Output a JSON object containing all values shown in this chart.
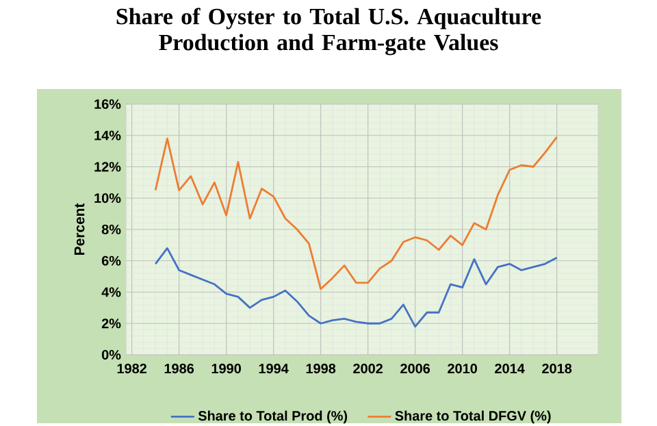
{
  "chart_data": {
    "type": "line",
    "title": "Share of Oyster to Total U.S. Aquaculture Production and Farm-gate Values",
    "ylabel": "Percent",
    "x": [
      1984,
      1985,
      1986,
      1987,
      1988,
      1989,
      1990,
      1991,
      1992,
      1993,
      1994,
      1995,
      1996,
      1997,
      1998,
      1999,
      2000,
      2001,
      2002,
      2003,
      2004,
      2005,
      2006,
      2007,
      2008,
      2009,
      2010,
      2011,
      2012,
      2013,
      2014,
      2015,
      2016,
      2017,
      2018
    ],
    "series": [
      {
        "name": "Share to Total Prod (%)",
        "color": "#4472c4",
        "values": [
          5.8,
          6.8,
          5.4,
          5.1,
          4.8,
          4.5,
          3.9,
          3.7,
          3.0,
          3.5,
          3.7,
          4.1,
          3.4,
          2.5,
          2.0,
          2.2,
          2.3,
          2.1,
          2.0,
          2.0,
          2.3,
          3.2,
          1.8,
          2.7,
          2.7,
          4.5,
          4.3,
          6.1,
          4.5,
          5.6,
          5.8,
          5.4,
          5.6,
          5.8,
          6.2
        ]
      },
      {
        "name": "Share to Total DFGV (%)",
        "color": "#ed7d31",
        "values": [
          10.5,
          13.8,
          10.5,
          11.4,
          9.6,
          11.0,
          8.9,
          12.3,
          8.7,
          10.6,
          10.1,
          8.7,
          8.0,
          7.1,
          4.2,
          4.9,
          5.7,
          4.6,
          4.6,
          5.5,
          6.0,
          7.2,
          7.5,
          7.3,
          6.7,
          7.6,
          7.0,
          8.4,
          8.0,
          10.2,
          11.8,
          12.1,
          12.0,
          12.9,
          13.9
        ]
      }
    ],
    "xlim": [
      1981.5,
      2021.5
    ],
    "xticks": [
      1982,
      1986,
      1990,
      1994,
      1998,
      2002,
      2006,
      2010,
      2014,
      2018
    ],
    "ylim": [
      0,
      16
    ],
    "yticks": [
      {
        "value": 0,
        "label": "0%"
      },
      {
        "value": 2,
        "label": "2%"
      },
      {
        "value": 4,
        "label": "4%"
      },
      {
        "value": 6,
        "label": "6%"
      },
      {
        "value": 8,
        "label": "8%"
      },
      {
        "value": 10,
        "label": "10%"
      },
      {
        "value": 12,
        "label": "12%"
      },
      {
        "value": 14,
        "label": "14%"
      },
      {
        "value": 16,
        "label": "16%"
      }
    ],
    "grid": true,
    "legend": "bottom",
    "marker": "none",
    "line_style": "solid"
  }
}
